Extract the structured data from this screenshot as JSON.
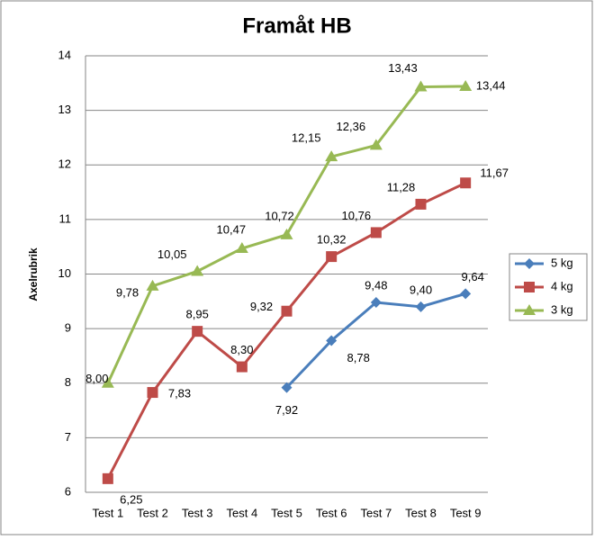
{
  "chart_data": {
    "type": "line",
    "title": "Framåt HB",
    "y_label": "Axelrubrik",
    "categories": [
      "Test 1",
      "Test 2",
      "Test 3",
      "Test 4",
      "Test 5",
      "Test 6",
      "Test 7",
      "Test 8",
      "Test 9"
    ],
    "series": [
      {
        "name": "5 kg",
        "color": "#4a7ebb",
        "marker": "diamond",
        "values": [
          null,
          null,
          null,
          null,
          7.92,
          8.78,
          9.48,
          9.4,
          9.64
        ],
        "value_labels": [
          null,
          null,
          null,
          null,
          "7,92",
          "8,78",
          "9,48",
          "9,40",
          "9,64"
        ]
      },
      {
        "name": "4 kg",
        "color": "#be4b48",
        "marker": "square",
        "values": [
          6.25,
          7.83,
          8.95,
          8.3,
          9.32,
          10.32,
          10.76,
          11.28,
          11.67
        ],
        "value_labels": [
          "6,25",
          "7,83",
          "8,95",
          "8,30",
          "9,32",
          "10,32",
          "10,76",
          "11,28",
          "11,67"
        ]
      },
      {
        "name": "3 kg",
        "color": "#98b954",
        "marker": "triangle",
        "values": [
          8.0,
          9.78,
          10.05,
          10.47,
          10.72,
          12.15,
          12.36,
          13.43,
          13.44
        ],
        "value_labels": [
          "8,00",
          "9,78",
          "10,05",
          "10,47",
          "10,72",
          "12,15",
          "12,36",
          "13,43",
          "13,44"
        ]
      }
    ],
    "ylim": [
      6,
      14
    ],
    "yticks": [
      6,
      7,
      8,
      9,
      10,
      11,
      12,
      13,
      14
    ],
    "grid": true,
    "legend": "right"
  }
}
